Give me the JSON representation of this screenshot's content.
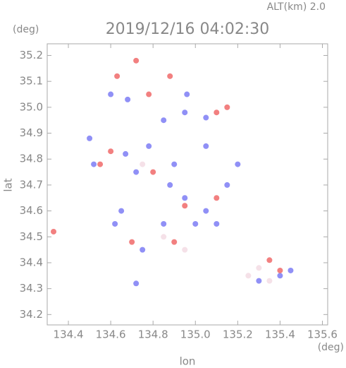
{
  "chart_data": {
    "type": "scatter",
    "title": "2019/12/16 04:02:30",
    "subtitle": "ALT(km) 2.0",
    "x_label": "lon",
    "y_label": "lat",
    "x_unit": "(deg)",
    "y_unit": "(deg)",
    "xlim": [
      134.3,
      135.625
    ],
    "ylim": [
      34.16,
      35.245
    ],
    "xticks": [
      134.4,
      134.6,
      134.8,
      {
        "value": 135.0,
        "label": "135.0"
      },
      135.2,
      135.4,
      135.6
    ],
    "yticks": [
      34.2,
      34.3,
      34.4,
      34.5,
      34.6,
      34.7,
      34.8,
      34.9,
      {
        "value": 35.0,
        "label": "35.0"
      },
      35.1,
      35.2
    ],
    "series": [
      {
        "color": "#7c7cf5",
        "x": [
          134.5,
          134.52,
          134.67,
          134.72,
          134.78,
          134.85,
          134.95,
          135.05,
          134.88,
          134.95,
          135.05,
          135.1,
          134.62,
          134.65,
          134.75,
          134.85,
          135.0,
          135.15,
          135.2,
          135.3,
          135.4,
          134.68,
          134.6,
          134.72,
          135.45,
          134.9,
          134.96,
          135.05
        ],
        "values": [
          34.88,
          34.78,
          34.82,
          34.75,
          34.85,
          34.95,
          34.98,
          34.96,
          34.7,
          34.65,
          34.6,
          34.55,
          34.55,
          34.6,
          34.45,
          34.55,
          34.55,
          34.7,
          34.78,
          34.33,
          34.35,
          35.03,
          35.05,
          34.32,
          34.37,
          34.78,
          35.05,
          34.85
        ]
      },
      {
        "color": "#f06a6a",
        "x": [
          134.33,
          134.55,
          134.7,
          134.72,
          134.78,
          134.9,
          135.1,
          135.15,
          135.35,
          135.4,
          134.8,
          134.95,
          135.1,
          134.6,
          134.88,
          134.63
        ],
        "values": [
          34.52,
          34.78,
          34.48,
          35.18,
          35.05,
          34.48,
          34.98,
          35.0,
          34.41,
          34.37,
          34.75,
          34.62,
          34.65,
          34.83,
          35.12,
          35.12
        ]
      },
      {
        "color": "#f3dce4",
        "x": [
          135.3,
          135.25,
          135.35,
          134.75,
          134.85,
          134.95
        ],
        "values": [
          34.38,
          34.35,
          34.33,
          34.78,
          34.5,
          34.45
        ]
      }
    ]
  }
}
